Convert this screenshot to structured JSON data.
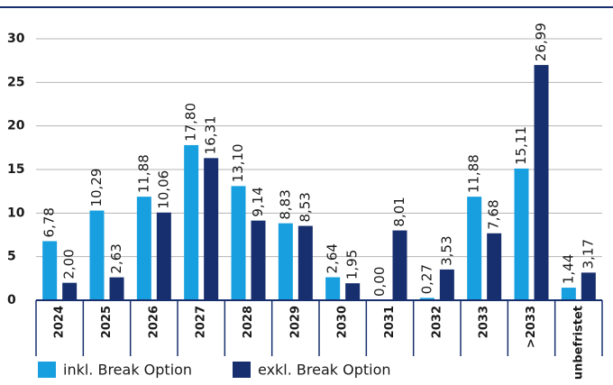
{
  "chart_data": {
    "type": "bar",
    "categories": [
      "2024",
      "2025",
      "2026",
      "2027",
      "2028",
      "2029",
      "2030",
      "2031",
      "2032",
      "2033",
      ">2033",
      "unbefristet"
    ],
    "series": [
      {
        "name": "inkl. Break Option",
        "color": "#189fdf",
        "values": [
          6.78,
          10.29,
          11.88,
          17.8,
          13.1,
          8.83,
          2.64,
          0.0,
          0.27,
          11.88,
          15.11,
          1.44
        ],
        "value_labels": [
          "6,78",
          "10,29",
          "11,88",
          "17,80",
          "13,10",
          "8,83",
          "2,64",
          "0,00",
          "0,27",
          "11,88",
          "15,11",
          "1,44"
        ]
      },
      {
        "name": "exkl. Break Option",
        "color": "#172f6e",
        "values": [
          2.0,
          2.63,
          10.06,
          16.31,
          9.14,
          8.53,
          1.95,
          8.01,
          3.53,
          7.68,
          26.99,
          3.17
        ],
        "value_labels": [
          "2,00",
          "2,63",
          "10,06",
          "16,31",
          "9,14",
          "8,53",
          "1,95",
          "8,01",
          "3,53",
          "7,68",
          "26,99",
          "3,17"
        ]
      }
    ],
    "ylim": [
      0,
      30
    ],
    "yticks": [
      0,
      5,
      10,
      15,
      20,
      25,
      30
    ],
    "grid": true,
    "legend": "bottom"
  }
}
